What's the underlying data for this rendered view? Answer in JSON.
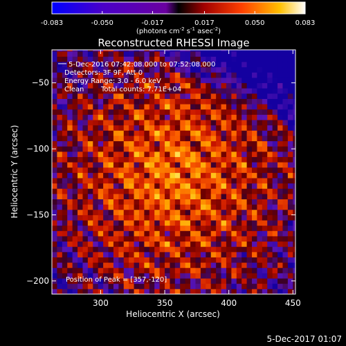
{
  "chart_data": {
    "type": "heatmap",
    "title": "Reconstructed RHESSI Image",
    "xlabel": "Heliocentric X (arcsec)",
    "ylabel": "Heliocentric Y (arcsec)",
    "xlim": [
      262,
      452
    ],
    "ylim": [
      -210,
      -25
    ],
    "x_ticks": [
      300,
      350,
      400,
      450
    ],
    "y_ticks": [
      -50,
      -100,
      -150,
      -200
    ],
    "colorbar": {
      "range": [
        -0.083,
        0.083
      ],
      "ticks": [
        "-0.083",
        "-0.050",
        "-0.017",
        "0.017",
        "0.050",
        "0.083"
      ],
      "unit_prefix": "(photons cm",
      "unit_sup1": "-2",
      "unit_mid": " s",
      "unit_sup2": "-1",
      "unit_mid2": " asec",
      "unit_sup3": "-2",
      "unit_suffix": ")"
    },
    "annotations": {
      "time_range": "5-Dec-2016 07:42:08.000 to 07:52:08.000",
      "detectors": "Detectors: 3F 9F, Att 0",
      "energy": "Energy Range: 3.0 - 6.0 keV",
      "clean": "Clean",
      "total_counts": "Total counts: 7.71E+04",
      "peak": "Position of Peak = [357,-120]"
    },
    "peak": [
      357,
      -120
    ],
    "colormap": "blue-purple-red-yellow-white"
  },
  "footer": {
    "date": "5-Dec-2017 01:07"
  }
}
